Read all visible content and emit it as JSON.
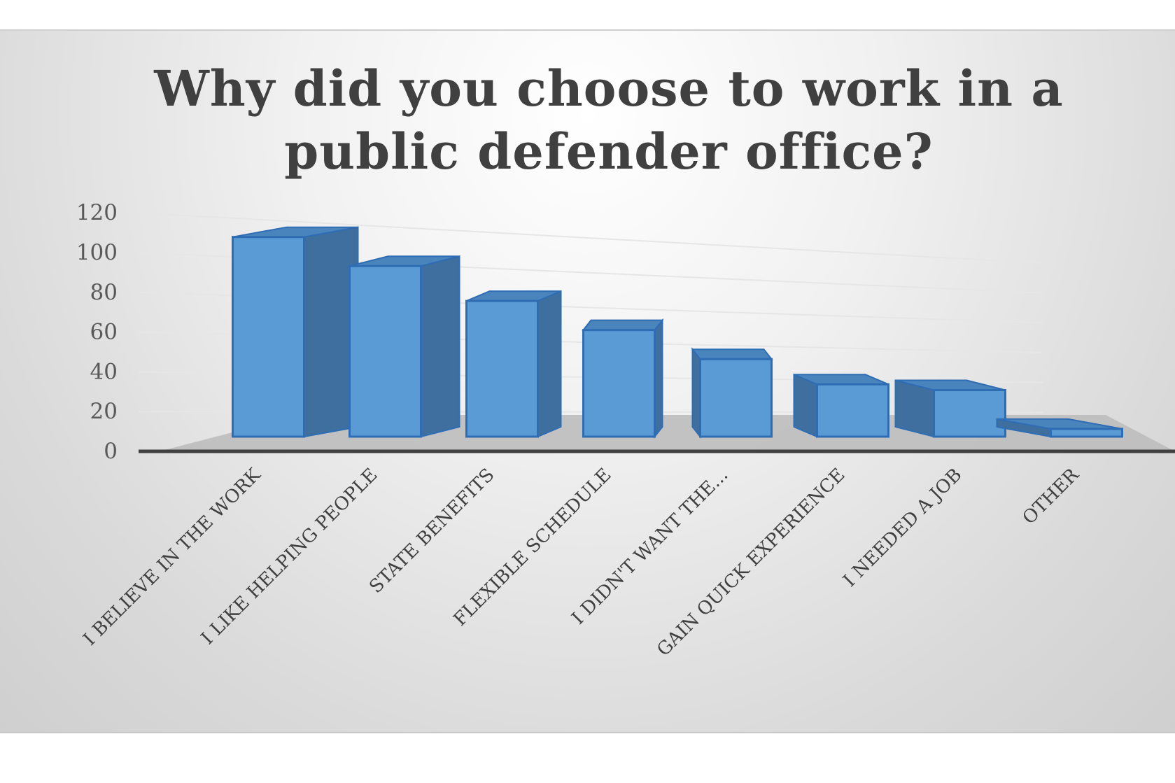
{
  "chart_data": {
    "type": "bar",
    "title_lines": [
      "Why did you choose to work in a",
      "public defender office?"
    ],
    "categories": [
      "I BELIEVE IN THE WORK",
      "I LIKE HELPING PEOPLE",
      "STATE BENEFITS",
      "FLEXIBLE SCHEDULE",
      "I DIDN'T WANT THE...",
      "GAIN QUICK EXPERIENCE",
      "I NEEDED A JOB",
      "OTHER"
    ],
    "values": [
      103,
      88,
      70,
      55,
      40,
      27,
      24,
      4
    ],
    "ylim": [
      0,
      120
    ],
    "yticks": [
      0,
      20,
      40,
      60,
      80,
      100,
      120
    ],
    "grid": true,
    "legend": "none",
    "style": "3d",
    "colors": {
      "front": "#5b9bd5",
      "side": "#3f6f9e",
      "top": "#4a84bd",
      "edge": "#2e6db3",
      "floor": "#bdbdbd"
    }
  }
}
